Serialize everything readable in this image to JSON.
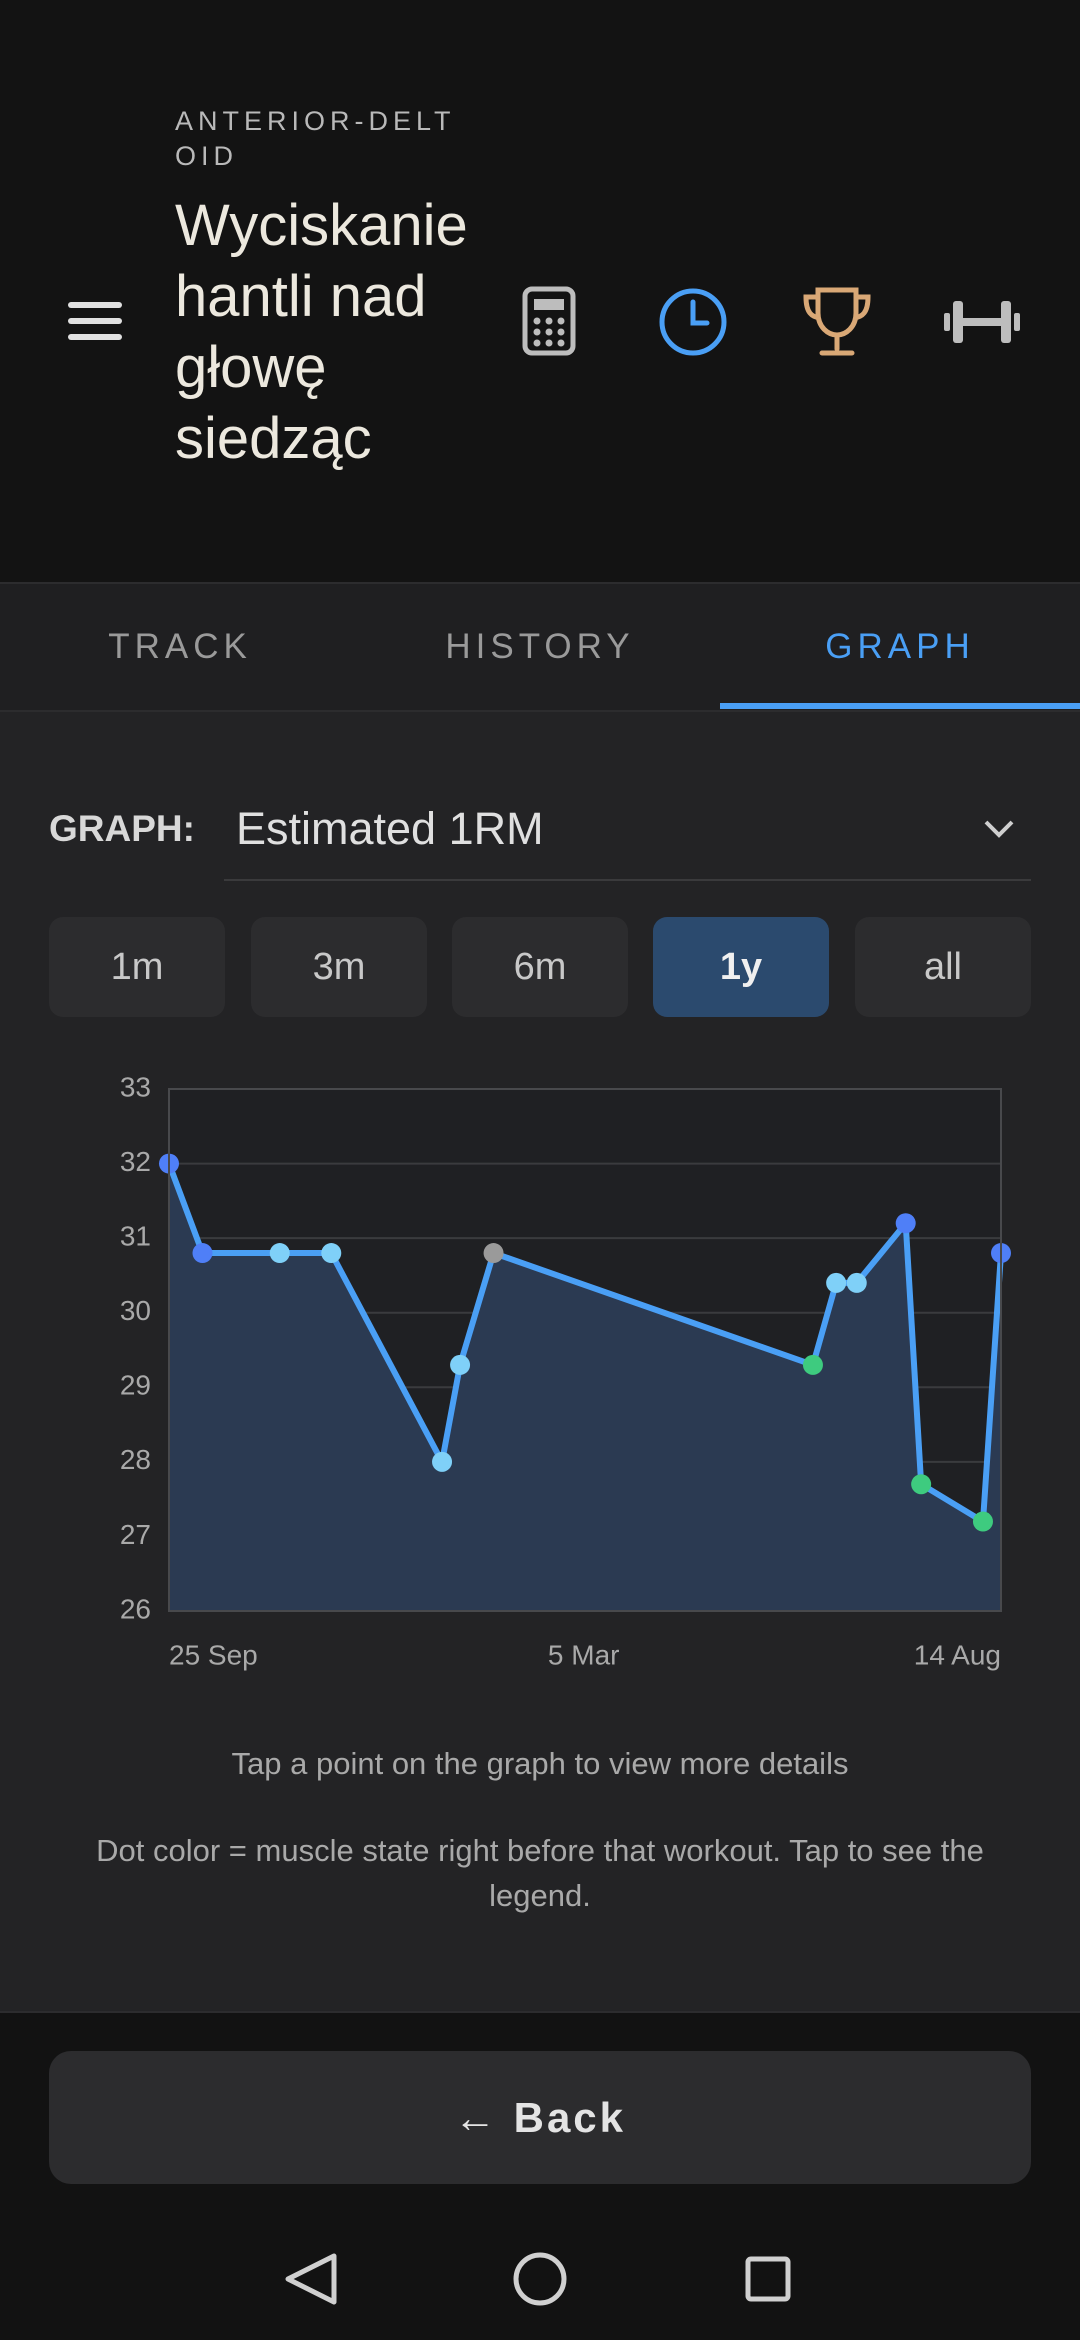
{
  "header": {
    "category": "ANTERIOR-DELTOID",
    "title": "Wyciskanie hantli nad głowę siedząc"
  },
  "tabs": [
    "TRACK",
    "HISTORY",
    "GRAPH"
  ],
  "graph_selector": {
    "label": "GRAPH:",
    "value": "Estimated 1RM"
  },
  "ranges": [
    "1m",
    "3m",
    "6m",
    "1y",
    "all"
  ],
  "chart_data": {
    "type": "line",
    "x": [
      "25 Sep",
      "8 Oct",
      "7 Nov",
      "27 Nov",
      "9 Jan",
      "16 Jan",
      "29 Jan",
      "2 Jun",
      "11 Jun",
      "19 Jun",
      "8 Jul",
      "14 Jul",
      "7 Aug",
      "14 Aug"
    ],
    "series": [
      {
        "color": "#4a9ff5",
        "area_color": "#2b3a52",
        "values": [
          32.0,
          30.8,
          30.8,
          30.8,
          28.0,
          29.3,
          30.8,
          29.3,
          30.4,
          30.4,
          31.2,
          27.7,
          27.2,
          30.8
        ],
        "point_colors": [
          "#4f7ff7",
          "#4f7ff7",
          "#7fd0f8",
          "#7fd0f8",
          "#7fd0f8",
          "#7fd0f8",
          "#9a9a9a",
          "#3ecb7f",
          "#7fd0f8",
          "#7fd0f8",
          "#4f7ff7",
          "#3ecb7f",
          "#3ecb7f",
          "#4f7ff7"
        ]
      }
    ],
    "xlim": [
      "25 Sep",
      "14 Aug"
    ],
    "xticks": [
      "25 Sep",
      "5 Mar",
      "14 Aug"
    ],
    "ylim": [
      26,
      33
    ],
    "yticks": [
      26,
      27,
      28,
      29,
      30,
      31,
      32,
      33
    ],
    "grid": true
  },
  "hints": [
    "Tap a point on the graph to view more details",
    "Dot color = muscle state right before that workout. Tap to see the legend."
  ],
  "back_button": "← Back"
}
